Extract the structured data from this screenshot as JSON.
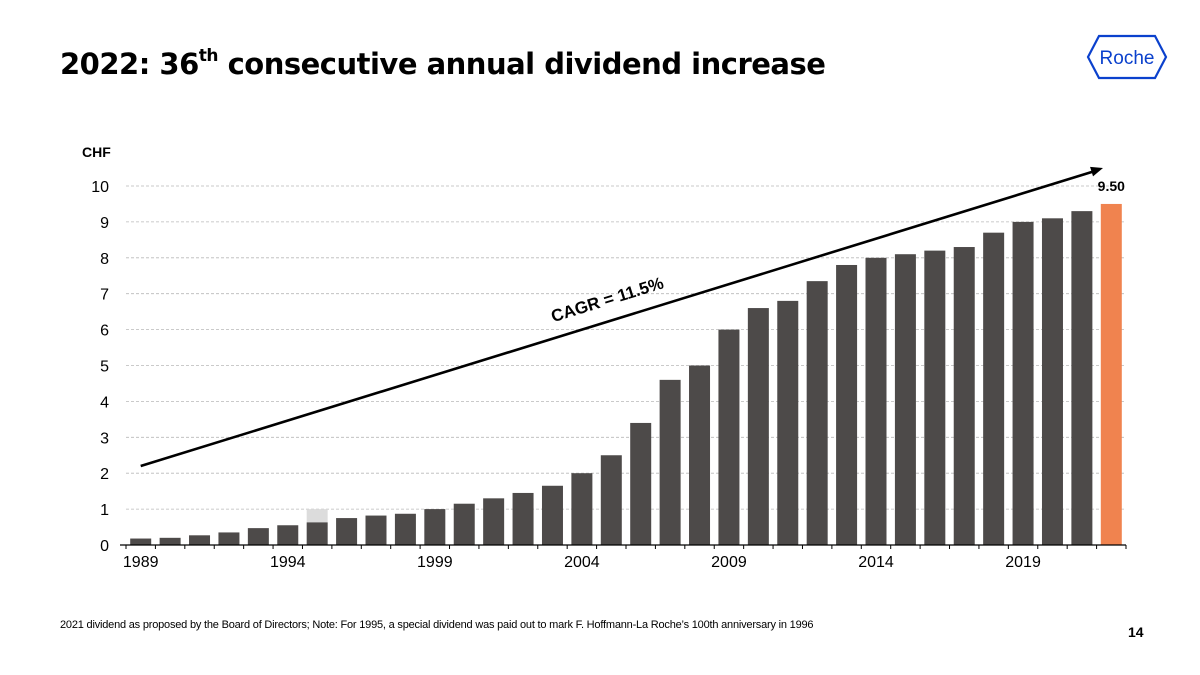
{
  "title": {
    "main": "2022: 36",
    "sup": "th",
    "rest": " consecutive annual dividend increase"
  },
  "logo": {
    "text": "Roche",
    "color": "#0b41cd"
  },
  "footnote": "2021 dividend as proposed by the Board of Directors; Note: For 1995, a special dividend was paid out to mark F. Hoffmann-La Roche’s 100th anniversary in 1996",
  "page_number": "14",
  "chart_data": {
    "type": "bar",
    "unit_label": "CHF",
    "categories": [
      1989,
      1990,
      1991,
      1992,
      1993,
      1994,
      1995,
      1996,
      1997,
      1998,
      1999,
      2000,
      2001,
      2002,
      2003,
      2004,
      2005,
      2006,
      2007,
      2008,
      2009,
      2010,
      2011,
      2012,
      2013,
      2014,
      2015,
      2016,
      2017,
      2018,
      2019,
      2020,
      2021,
      2022
    ],
    "series": [
      {
        "values": [
          0.18,
          0.2,
          0.27,
          0.35,
          0.47,
          0.55,
          0.63,
          0.75,
          0.82,
          0.87,
          1.0,
          1.15,
          1.3,
          1.45,
          1.65,
          2.0,
          2.5,
          3.4,
          4.6,
          5.0,
          6.0,
          6.6,
          6.8,
          7.35,
          7.8,
          8.0,
          8.1,
          8.2,
          8.3,
          8.7,
          9.0,
          9.1,
          9.3,
          9.5
        ]
      }
    ],
    "special_dividend": {
      "year": 1995,
      "value": 1.0
    },
    "highlight": {
      "year": 2022,
      "label": "9.50"
    },
    "annotation": "CAGR = 11.5%",
    "x_tick_labels": [
      "1989",
      "1994",
      "1999",
      "2004",
      "2009",
      "2014",
      "2019"
    ],
    "y_ticks": [
      "0",
      "1",
      "2",
      "3",
      "4",
      "5",
      "6",
      "7",
      "8",
      "9",
      "10"
    ],
    "ylim": [
      0,
      10
    ],
    "grid": true,
    "colors": {
      "bar": "#4d4a49",
      "highlight": "#f0834f",
      "special": "#dcdcdc",
      "trend": "#000000"
    }
  }
}
